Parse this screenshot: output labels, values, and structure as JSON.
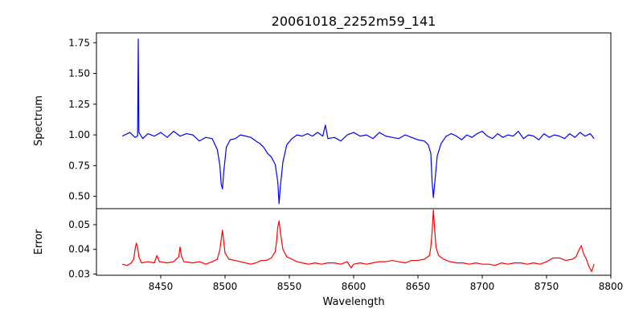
{
  "chart_data": {
    "type": "line",
    "title": "20061018_2252m59_141",
    "xlabel": "Wavelength",
    "xlim": [
      8400,
      8800
    ],
    "xticks": [
      8450,
      8500,
      8550,
      8600,
      8650,
      8700,
      8750,
      8800
    ],
    "panels": [
      {
        "ylabel": "Spectrum",
        "ylim": [
          0.4,
          1.83
        ],
        "yticks": [
          0.5,
          0.75,
          1.0,
          1.25,
          1.5,
          1.75
        ],
        "series": [
          {
            "color": "#0000ff",
            "points": [
              [
                8420,
                0.99
              ],
              [
                8426,
                1.02
              ],
              [
                8430,
                0.98
              ],
              [
                8432.0,
                0.99
              ],
              [
                8432.5,
                1.78
              ],
              [
                8433.0,
                1.02
              ],
              [
                8436,
                0.97
              ],
              [
                8440,
                1.01
              ],
              [
                8445,
                0.99
              ],
              [
                8450,
                1.02
              ],
              [
                8455,
                0.98
              ],
              [
                8460,
                1.03
              ],
              [
                8465,
                0.99
              ],
              [
                8470,
                1.01
              ],
              [
                8475,
                1.0
              ],
              [
                8480,
                0.95
              ],
              [
                8485,
                0.98
              ],
              [
                8490,
                0.97
              ],
              [
                8494,
                0.88
              ],
              [
                8496,
                0.75
              ],
              [
                8497,
                0.6
              ],
              [
                8498,
                0.56
              ],
              [
                8499,
                0.7
              ],
              [
                8501,
                0.9
              ],
              [
                8504,
                0.96
              ],
              [
                8508,
                0.97
              ],
              [
                8512,
                1.0
              ],
              [
                8516,
                0.99
              ],
              [
                8520,
                0.98
              ],
              [
                8524,
                0.95
              ],
              [
                8527,
                0.93
              ],
              [
                8530,
                0.9
              ],
              [
                8533,
                0.85
              ],
              [
                8536,
                0.82
              ],
              [
                8539,
                0.76
              ],
              [
                8541,
                0.62
              ],
              [
                8542,
                0.44
              ],
              [
                8543,
                0.58
              ],
              [
                8545,
                0.78
              ],
              [
                8548,
                0.92
              ],
              [
                8552,
                0.97
              ],
              [
                8556,
                1.0
              ],
              [
                8560,
                0.99
              ],
              [
                8564,
                1.01
              ],
              [
                8568,
                0.99
              ],
              [
                8572,
                1.02
              ],
              [
                8576,
                0.99
              ],
              [
                8578,
                1.08
              ],
              [
                8580,
                0.97
              ],
              [
                8585,
                0.98
              ],
              [
                8590,
                0.95
              ],
              [
                8595,
                1.0
              ],
              [
                8600,
                1.02
              ],
              [
                8605,
                0.99
              ],
              [
                8610,
                1.0
              ],
              [
                8615,
                0.97
              ],
              [
                8620,
                1.02
              ],
              [
                8625,
                0.99
              ],
              [
                8630,
                0.98
              ],
              [
                8635,
                0.97
              ],
              [
                8640,
                1.0
              ],
              [
                8645,
                0.98
              ],
              [
                8650,
                0.96
              ],
              [
                8655,
                0.95
              ],
              [
                8658,
                0.92
              ],
              [
                8660,
                0.85
              ],
              [
                8661,
                0.62
              ],
              [
                8662,
                0.49
              ],
              [
                8663,
                0.6
              ],
              [
                8665,
                0.83
              ],
              [
                8668,
                0.93
              ],
              [
                8672,
                0.99
              ],
              [
                8676,
                1.01
              ],
              [
                8680,
                0.99
              ],
              [
                8684,
                0.96
              ],
              [
                8688,
                1.0
              ],
              [
                8692,
                0.98
              ],
              [
                8696,
                1.01
              ],
              [
                8700,
                1.03
              ],
              [
                8704,
                0.99
              ],
              [
                8708,
                0.97
              ],
              [
                8712,
                1.01
              ],
              [
                8716,
                0.98
              ],
              [
                8720,
                1.0
              ],
              [
                8724,
                0.99
              ],
              [
                8728,
                1.03
              ],
              [
                8732,
                0.97
              ],
              [
                8736,
                1.0
              ],
              [
                8740,
                0.99
              ],
              [
                8744,
                0.96
              ],
              [
                8748,
                1.01
              ],
              [
                8752,
                0.98
              ],
              [
                8756,
                1.0
              ],
              [
                8760,
                0.99
              ],
              [
                8764,
                0.97
              ],
              [
                8768,
                1.01
              ],
              [
                8772,
                0.98
              ],
              [
                8776,
                1.02
              ],
              [
                8780,
                0.99
              ],
              [
                8784,
                1.01
              ],
              [
                8787,
                0.97
              ]
            ]
          }
        ]
      },
      {
        "ylabel": "Error",
        "ylim": [
          0.0295,
          0.0565
        ],
        "yticks": [
          0.03,
          0.04,
          0.05
        ],
        "series": [
          {
            "color": "#ff0000",
            "points": [
              [
                8420,
                0.034
              ],
              [
                8424,
                0.0335
              ],
              [
                8427,
                0.0345
              ],
              [
                8429,
                0.036
              ],
              [
                8430,
                0.04
              ],
              [
                8431,
                0.0425
              ],
              [
                8432,
                0.041
              ],
              [
                8433,
                0.037
              ],
              [
                8435,
                0.0345
              ],
              [
                8440,
                0.035
              ],
              [
                8445,
                0.0345
              ],
              [
                8447,
                0.0375
              ],
              [
                8449,
                0.035
              ],
              [
                8455,
                0.0345
              ],
              [
                8460,
                0.035
              ],
              [
                8464,
                0.037
              ],
              [
                8465,
                0.041
              ],
              [
                8466,
                0.0375
              ],
              [
                8468,
                0.035
              ],
              [
                8475,
                0.0345
              ],
              [
                8480,
                0.035
              ],
              [
                8485,
                0.034
              ],
              [
                8490,
                0.035
              ],
              [
                8494,
                0.036
              ],
              [
                8496,
                0.04
              ],
              [
                8497,
                0.044
              ],
              [
                8498,
                0.0478
              ],
              [
                8499,
                0.043
              ],
              [
                8500,
                0.0385
              ],
              [
                8503,
                0.036
              ],
              [
                8508,
                0.0355
              ],
              [
                8512,
                0.035
              ],
              [
                8516,
                0.0345
              ],
              [
                8520,
                0.034
              ],
              [
                8524,
                0.0345
              ],
              [
                8528,
                0.0355
              ],
              [
                8532,
                0.0355
              ],
              [
                8536,
                0.0365
              ],
              [
                8539,
                0.039
              ],
              [
                8540,
                0.043
              ],
              [
                8541,
                0.049
              ],
              [
                8542,
                0.0515
              ],
              [
                8543,
                0.047
              ],
              [
                8545,
                0.04
              ],
              [
                8548,
                0.037
              ],
              [
                8552,
                0.036
              ],
              [
                8556,
                0.035
              ],
              [
                8560,
                0.0345
              ],
              [
                8565,
                0.034
              ],
              [
                8570,
                0.0345
              ],
              [
                8575,
                0.034
              ],
              [
                8580,
                0.0345
              ],
              [
                8585,
                0.0345
              ],
              [
                8590,
                0.034
              ],
              [
                8595,
                0.035
              ],
              [
                8598,
                0.0325
              ],
              [
                8600,
                0.034
              ],
              [
                8605,
                0.0345
              ],
              [
                8610,
                0.034
              ],
              [
                8615,
                0.0345
              ],
              [
                8620,
                0.035
              ],
              [
                8625,
                0.035
              ],
              [
                8630,
                0.0355
              ],
              [
                8635,
                0.035
              ],
              [
                8640,
                0.0345
              ],
              [
                8645,
                0.0355
              ],
              [
                8650,
                0.0355
              ],
              [
                8655,
                0.036
              ],
              [
                8659,
                0.0375
              ],
              [
                8660,
                0.041
              ],
              [
                8661,
                0.047
              ],
              [
                8662,
                0.056
              ],
              [
                8663,
                0.048
              ],
              [
                8664,
                0.041
              ],
              [
                8666,
                0.0375
              ],
              [
                8670,
                0.036
              ],
              [
                8675,
                0.035
              ],
              [
                8680,
                0.0345
              ],
              [
                8685,
                0.0345
              ],
              [
                8690,
                0.034
              ],
              [
                8695,
                0.0345
              ],
              [
                8700,
                0.034
              ],
              [
                8705,
                0.034
              ],
              [
                8710,
                0.0335
              ],
              [
                8715,
                0.0345
              ],
              [
                8720,
                0.034
              ],
              [
                8725,
                0.0345
              ],
              [
                8730,
                0.0345
              ],
              [
                8735,
                0.034
              ],
              [
                8740,
                0.0345
              ],
              [
                8745,
                0.034
              ],
              [
                8750,
                0.035
              ],
              [
                8755,
                0.0365
              ],
              [
                8760,
                0.0365
              ],
              [
                8765,
                0.0355
              ],
              [
                8770,
                0.036
              ],
              [
                8773,
                0.037
              ],
              [
                8775,
                0.0395
              ],
              [
                8777,
                0.0415
              ],
              [
                8779,
                0.038
              ],
              [
                8781,
                0.036
              ],
              [
                8783,
                0.033
              ],
              [
                8785,
                0.031
              ],
              [
                8787,
                0.034
              ]
            ]
          }
        ]
      }
    ]
  }
}
